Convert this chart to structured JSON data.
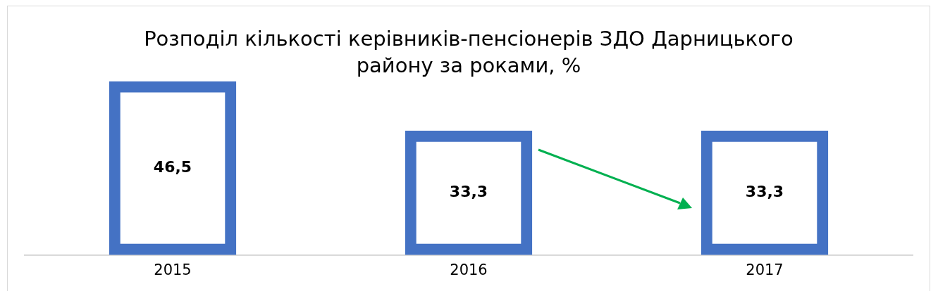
{
  "chart_data": {
    "type": "bar",
    "title": "Розподіл кількості керівників-пенсіонерів ЗДО Дарницького району за роками, %",
    "categories": [
      "2015",
      "2016",
      "2017"
    ],
    "values": [
      46.5,
      33.3,
      33.3
    ],
    "value_labels": [
      "46,5",
      "33,3",
      "33,3"
    ],
    "color": "#4472c4",
    "grid": false,
    "legend": false
  }
}
